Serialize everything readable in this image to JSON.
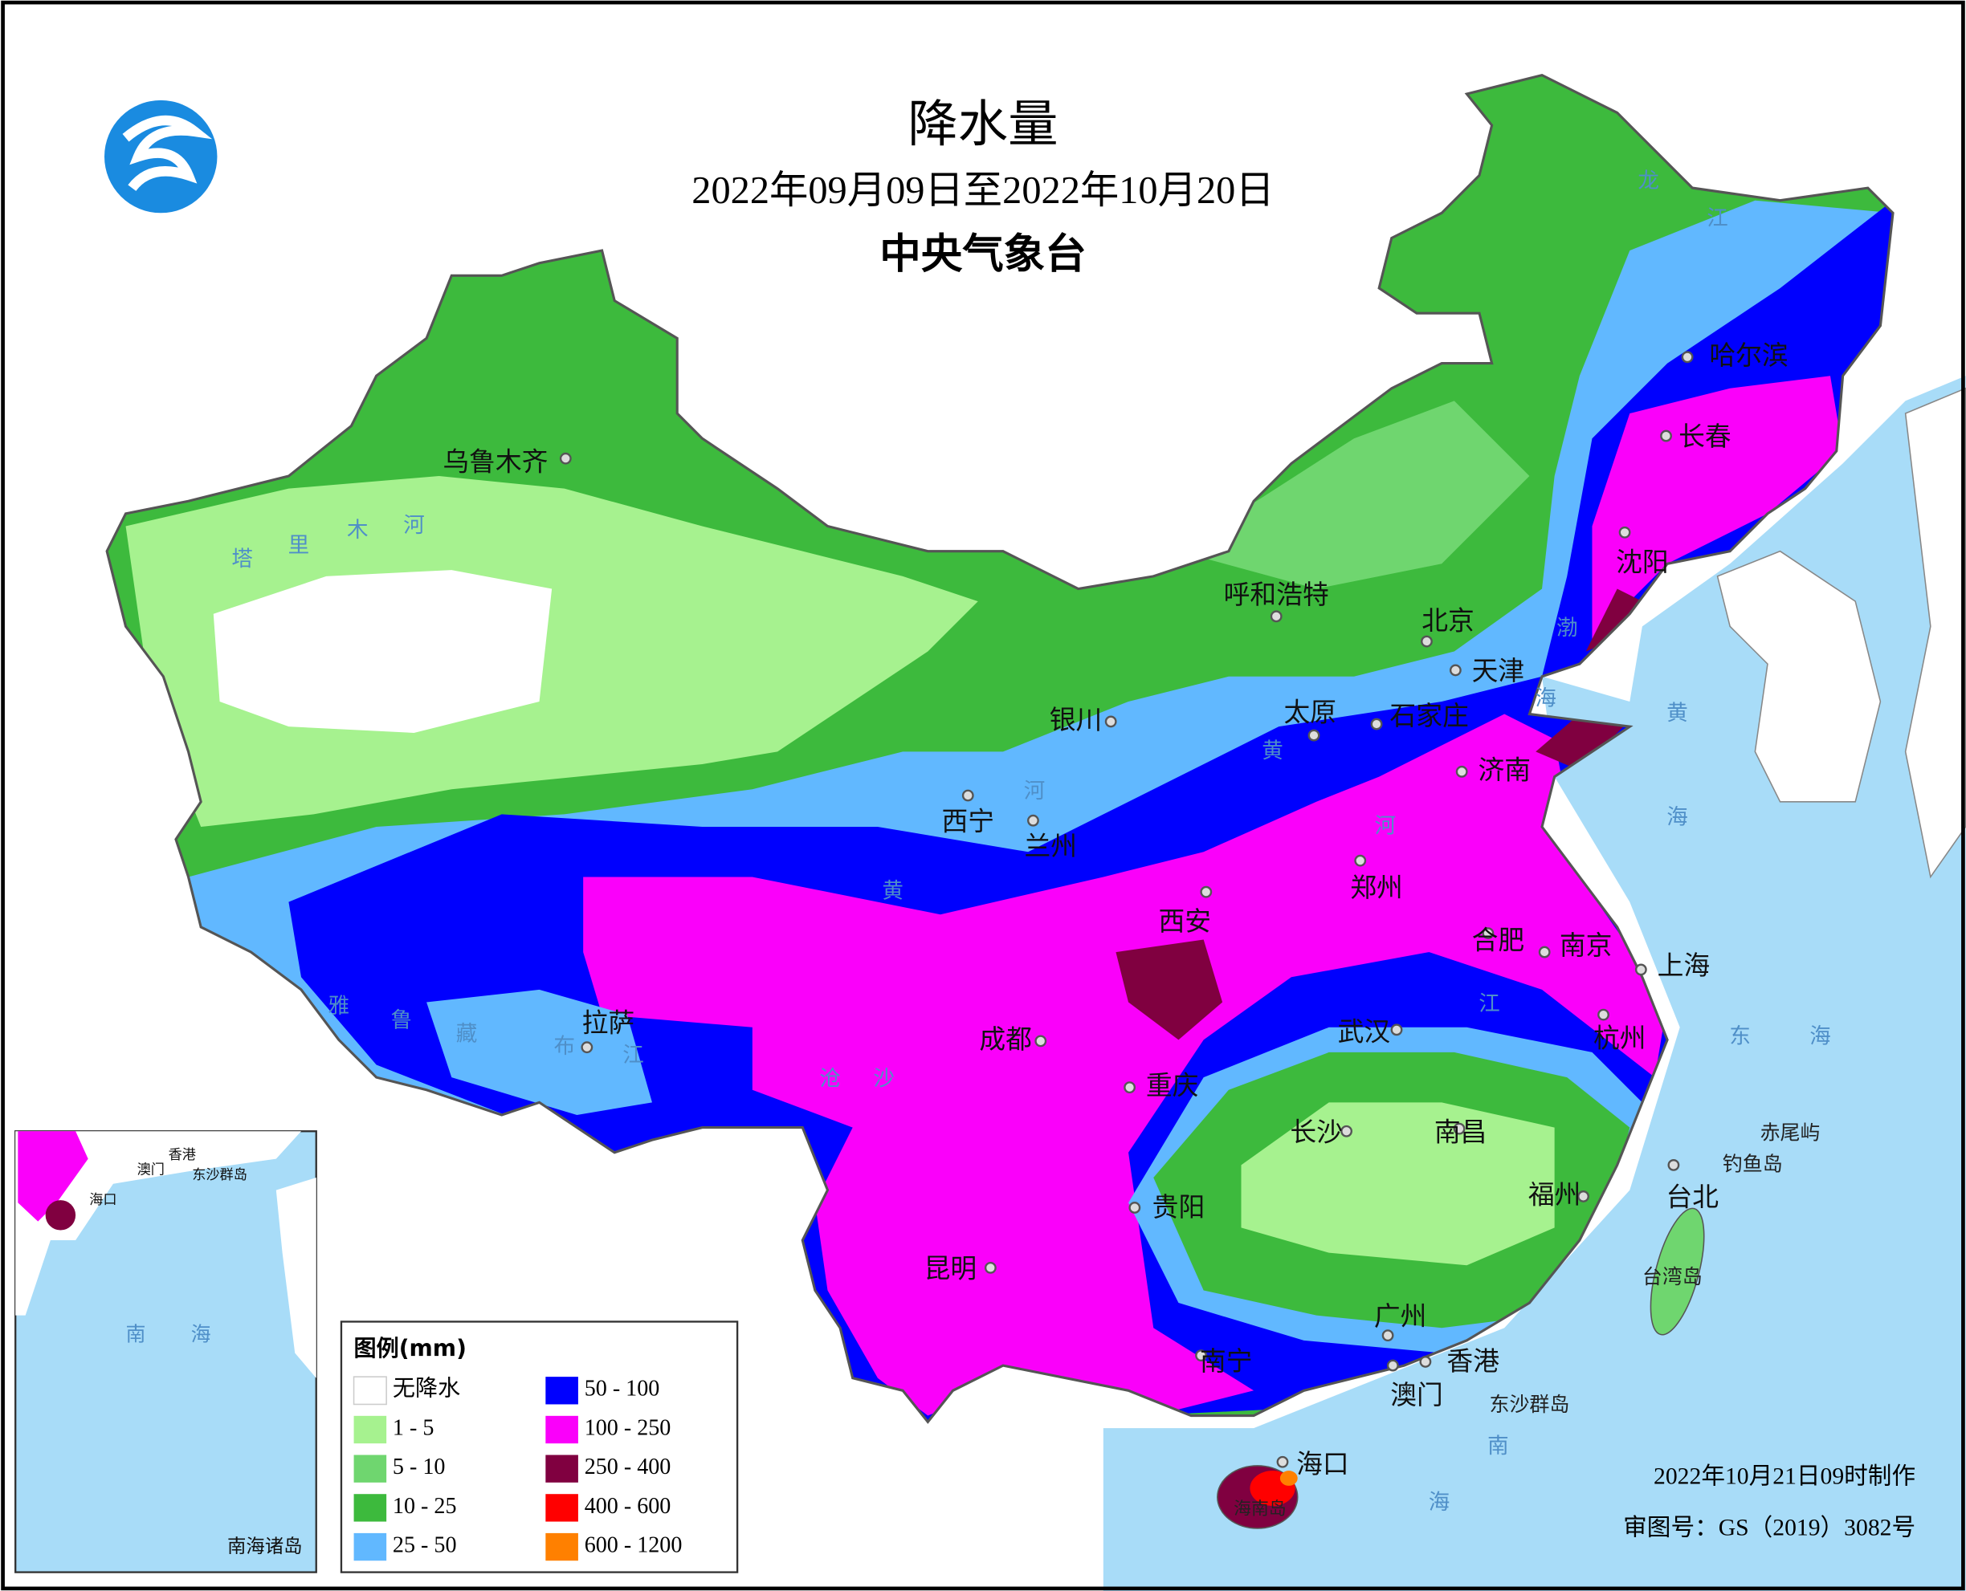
{
  "header": {
    "title": "降水量",
    "subtitle": "2022年09月09日至2022年10月20日",
    "agency": "中央气象台"
  },
  "legend": {
    "title": "图例(mm)",
    "items": [
      {
        "label": "无降水",
        "color": "#ffffff"
      },
      {
        "label": "1 - 5",
        "color": "#a6f28f"
      },
      {
        "label": "5 - 10",
        "color": "#6fd66f"
      },
      {
        "label": "10 - 25",
        "color": "#3dba3d"
      },
      {
        "label": "25 - 50",
        "color": "#61b8ff"
      },
      {
        "label": "50 - 100",
        "color": "#0000fe"
      },
      {
        "label": "100 - 250",
        "color": "#fa00fa"
      },
      {
        "label": "250 - 400",
        "color": "#800040"
      },
      {
        "label": "400 - 600",
        "color": "#ff0000"
      },
      {
        "label": "600 - 1200",
        "color": "#ff8000"
      }
    ]
  },
  "cities": [
    {
      "label": "乌鲁木齐"
    },
    {
      "label": "呼和浩特"
    },
    {
      "label": "北京"
    },
    {
      "label": "天津"
    },
    {
      "label": "银川"
    },
    {
      "label": "太原"
    },
    {
      "label": "石家庄"
    },
    {
      "label": "济南"
    },
    {
      "label": "西宁"
    },
    {
      "label": "兰州"
    },
    {
      "label": "郑州"
    },
    {
      "label": "西安"
    },
    {
      "label": "合肥"
    },
    {
      "label": "南京"
    },
    {
      "label": "上海"
    },
    {
      "label": "杭州"
    },
    {
      "label": "拉萨"
    },
    {
      "label": "成都"
    },
    {
      "label": "武汉"
    },
    {
      "label": "重庆"
    },
    {
      "label": "长沙"
    },
    {
      "label": "南昌"
    },
    {
      "label": "福州"
    },
    {
      "label": "台北"
    },
    {
      "label": "贵阳"
    },
    {
      "label": "昆明"
    },
    {
      "label": "南宁"
    },
    {
      "label": "广州"
    },
    {
      "label": "香港"
    },
    {
      "label": "澳门"
    },
    {
      "label": "海口"
    },
    {
      "label": "哈尔滨"
    },
    {
      "label": "长春"
    },
    {
      "label": "沈阳"
    }
  ],
  "water_labels": [
    "塔",
    "里",
    "木",
    "河",
    "雅",
    "鲁",
    "藏",
    "布",
    "江",
    "黄",
    "河",
    "黄",
    "河",
    "沧",
    "沙",
    "江",
    "龙",
    "江",
    "渤",
    "海",
    "黄",
    "海",
    "东",
    "海",
    "南",
    "海"
  ],
  "islands": [
    "赤尾屿",
    "钓鱼岛",
    "台湾岛",
    "东沙群岛",
    "海南岛"
  ],
  "inset": {
    "labels": [
      "香港",
      "澳门",
      "东沙群岛",
      "海口",
      "南",
      "海",
      "南海诸岛"
    ]
  },
  "footer": {
    "made": "2022年10月21日09时制作",
    "approval": "审图号：GS（2019）3082号"
  }
}
